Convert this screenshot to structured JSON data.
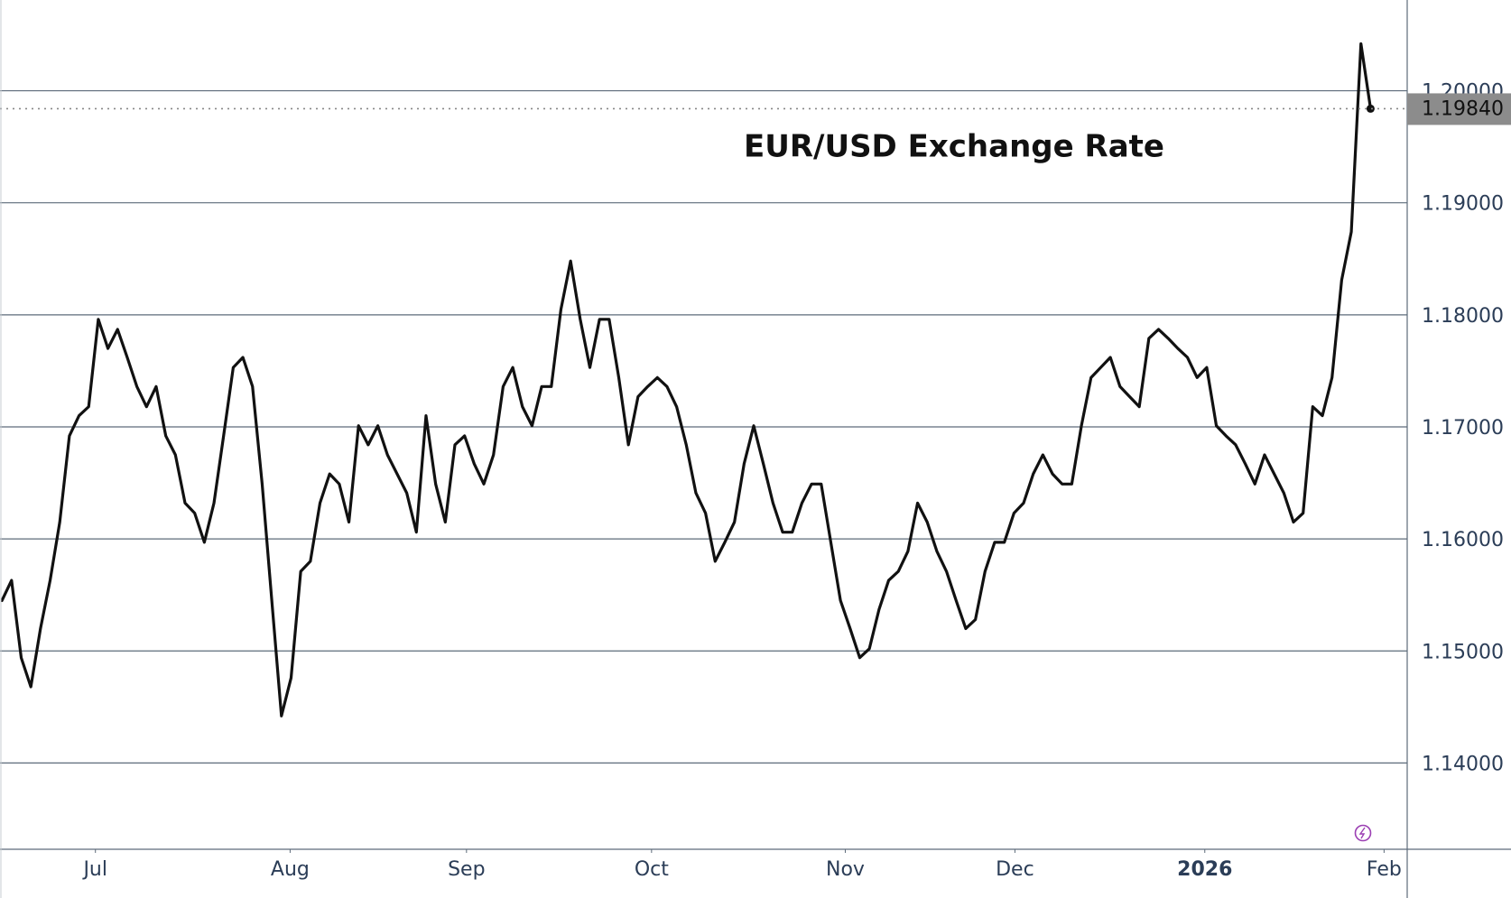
{
  "chart_data": {
    "type": "line",
    "title": "EUR/USD Exchange Rate",
    "color": "#111111",
    "grid": true,
    "ylim": [
      1.1323,
      1.2081
    ],
    "yticks": [
      {
        "value": 1.14,
        "label": "1.14000"
      },
      {
        "value": 1.15,
        "label": "1.15000"
      },
      {
        "value": 1.16,
        "label": "1.16000"
      },
      {
        "value": 1.17,
        "label": "1.17000"
      },
      {
        "value": 1.18,
        "label": "1.18000"
      },
      {
        "value": 1.19,
        "label": "1.19000"
      },
      {
        "value": 1.2,
        "label": "1.20000"
      }
    ],
    "xlim": [
      -0.2,
      145.8
    ],
    "xticks": [
      {
        "value": 9.7,
        "label": "Jul"
      },
      {
        "value": 29.9,
        "label": "Aug"
      },
      {
        "value": 48.2,
        "label": "Sep"
      },
      {
        "value": 67.4,
        "label": "Oct"
      },
      {
        "value": 87.5,
        "label": "Nov"
      },
      {
        "value": 105.1,
        "label": "Dec"
      },
      {
        "value": 124.8,
        "label": "2026"
      },
      {
        "value": 143.4,
        "label": "Feb"
      }
    ],
    "price_label": {
      "value": 1.1984,
      "label": "1.19840"
    },
    "values": [
      1.1545,
      1.1563,
      1.1494,
      1.1468,
      1.152,
      1.1563,
      1.1615,
      1.1692,
      1.171,
      1.1718,
      1.1796,
      1.177,
      1.1787,
      1.1762,
      1.1736,
      1.1718,
      1.1736,
      1.1692,
      1.1675,
      1.1632,
      1.1623,
      1.1597,
      1.1632,
      1.1692,
      1.1753,
      1.1762,
      1.1736,
      1.1649,
      1.1545,
      1.1442,
      1.1476,
      1.1571,
      1.158,
      1.1632,
      1.1658,
      1.1649,
      1.1615,
      1.1701,
      1.1684,
      1.1701,
      1.1675,
      1.1658,
      1.1641,
      1.1606,
      1.171,
      1.1649,
      1.1615,
      1.1684,
      1.1692,
      1.1667,
      1.1649,
      1.1675,
      1.1736,
      1.1753,
      1.1718,
      1.1701,
      1.1736,
      1.1736,
      1.1805,
      1.1848,
      1.1796,
      1.1753,
      1.1796,
      1.1796,
      1.1744,
      1.1684,
      1.1727,
      1.1736,
      1.1744,
      1.1736,
      1.1718,
      1.1684,
      1.1641,
      1.1623,
      1.158,
      1.1597,
      1.1615,
      1.1667,
      1.1701,
      1.1667,
      1.1632,
      1.1606,
      1.1606,
      1.1632,
      1.1649,
      1.1649,
      1.1597,
      1.1545,
      1.152,
      1.1494,
      1.1502,
      1.1537,
      1.1563,
      1.1571,
      1.1589,
      1.1632,
      1.1615,
      1.1589,
      1.1571,
      1.1545,
      1.152,
      1.1528,
      1.1571,
      1.1597,
      1.1597,
      1.1623,
      1.1632,
      1.1658,
      1.1675,
      1.1658,
      1.1649,
      1.1649,
      1.1701,
      1.1744,
      1.1753,
      1.1762,
      1.1736,
      1.1727,
      1.1718,
      1.1779,
      1.1787,
      1.1779,
      1.177,
      1.1762,
      1.1744,
      1.1753,
      1.1701,
      1.1692,
      1.1684,
      1.1667,
      1.1649,
      1.1675,
      1.1658,
      1.1641,
      1.1615,
      1.1623,
      1.1718,
      1.171,
      1.1744,
      1.1831,
      1.1874,
      1.2042,
      1.1984
    ]
  }
}
